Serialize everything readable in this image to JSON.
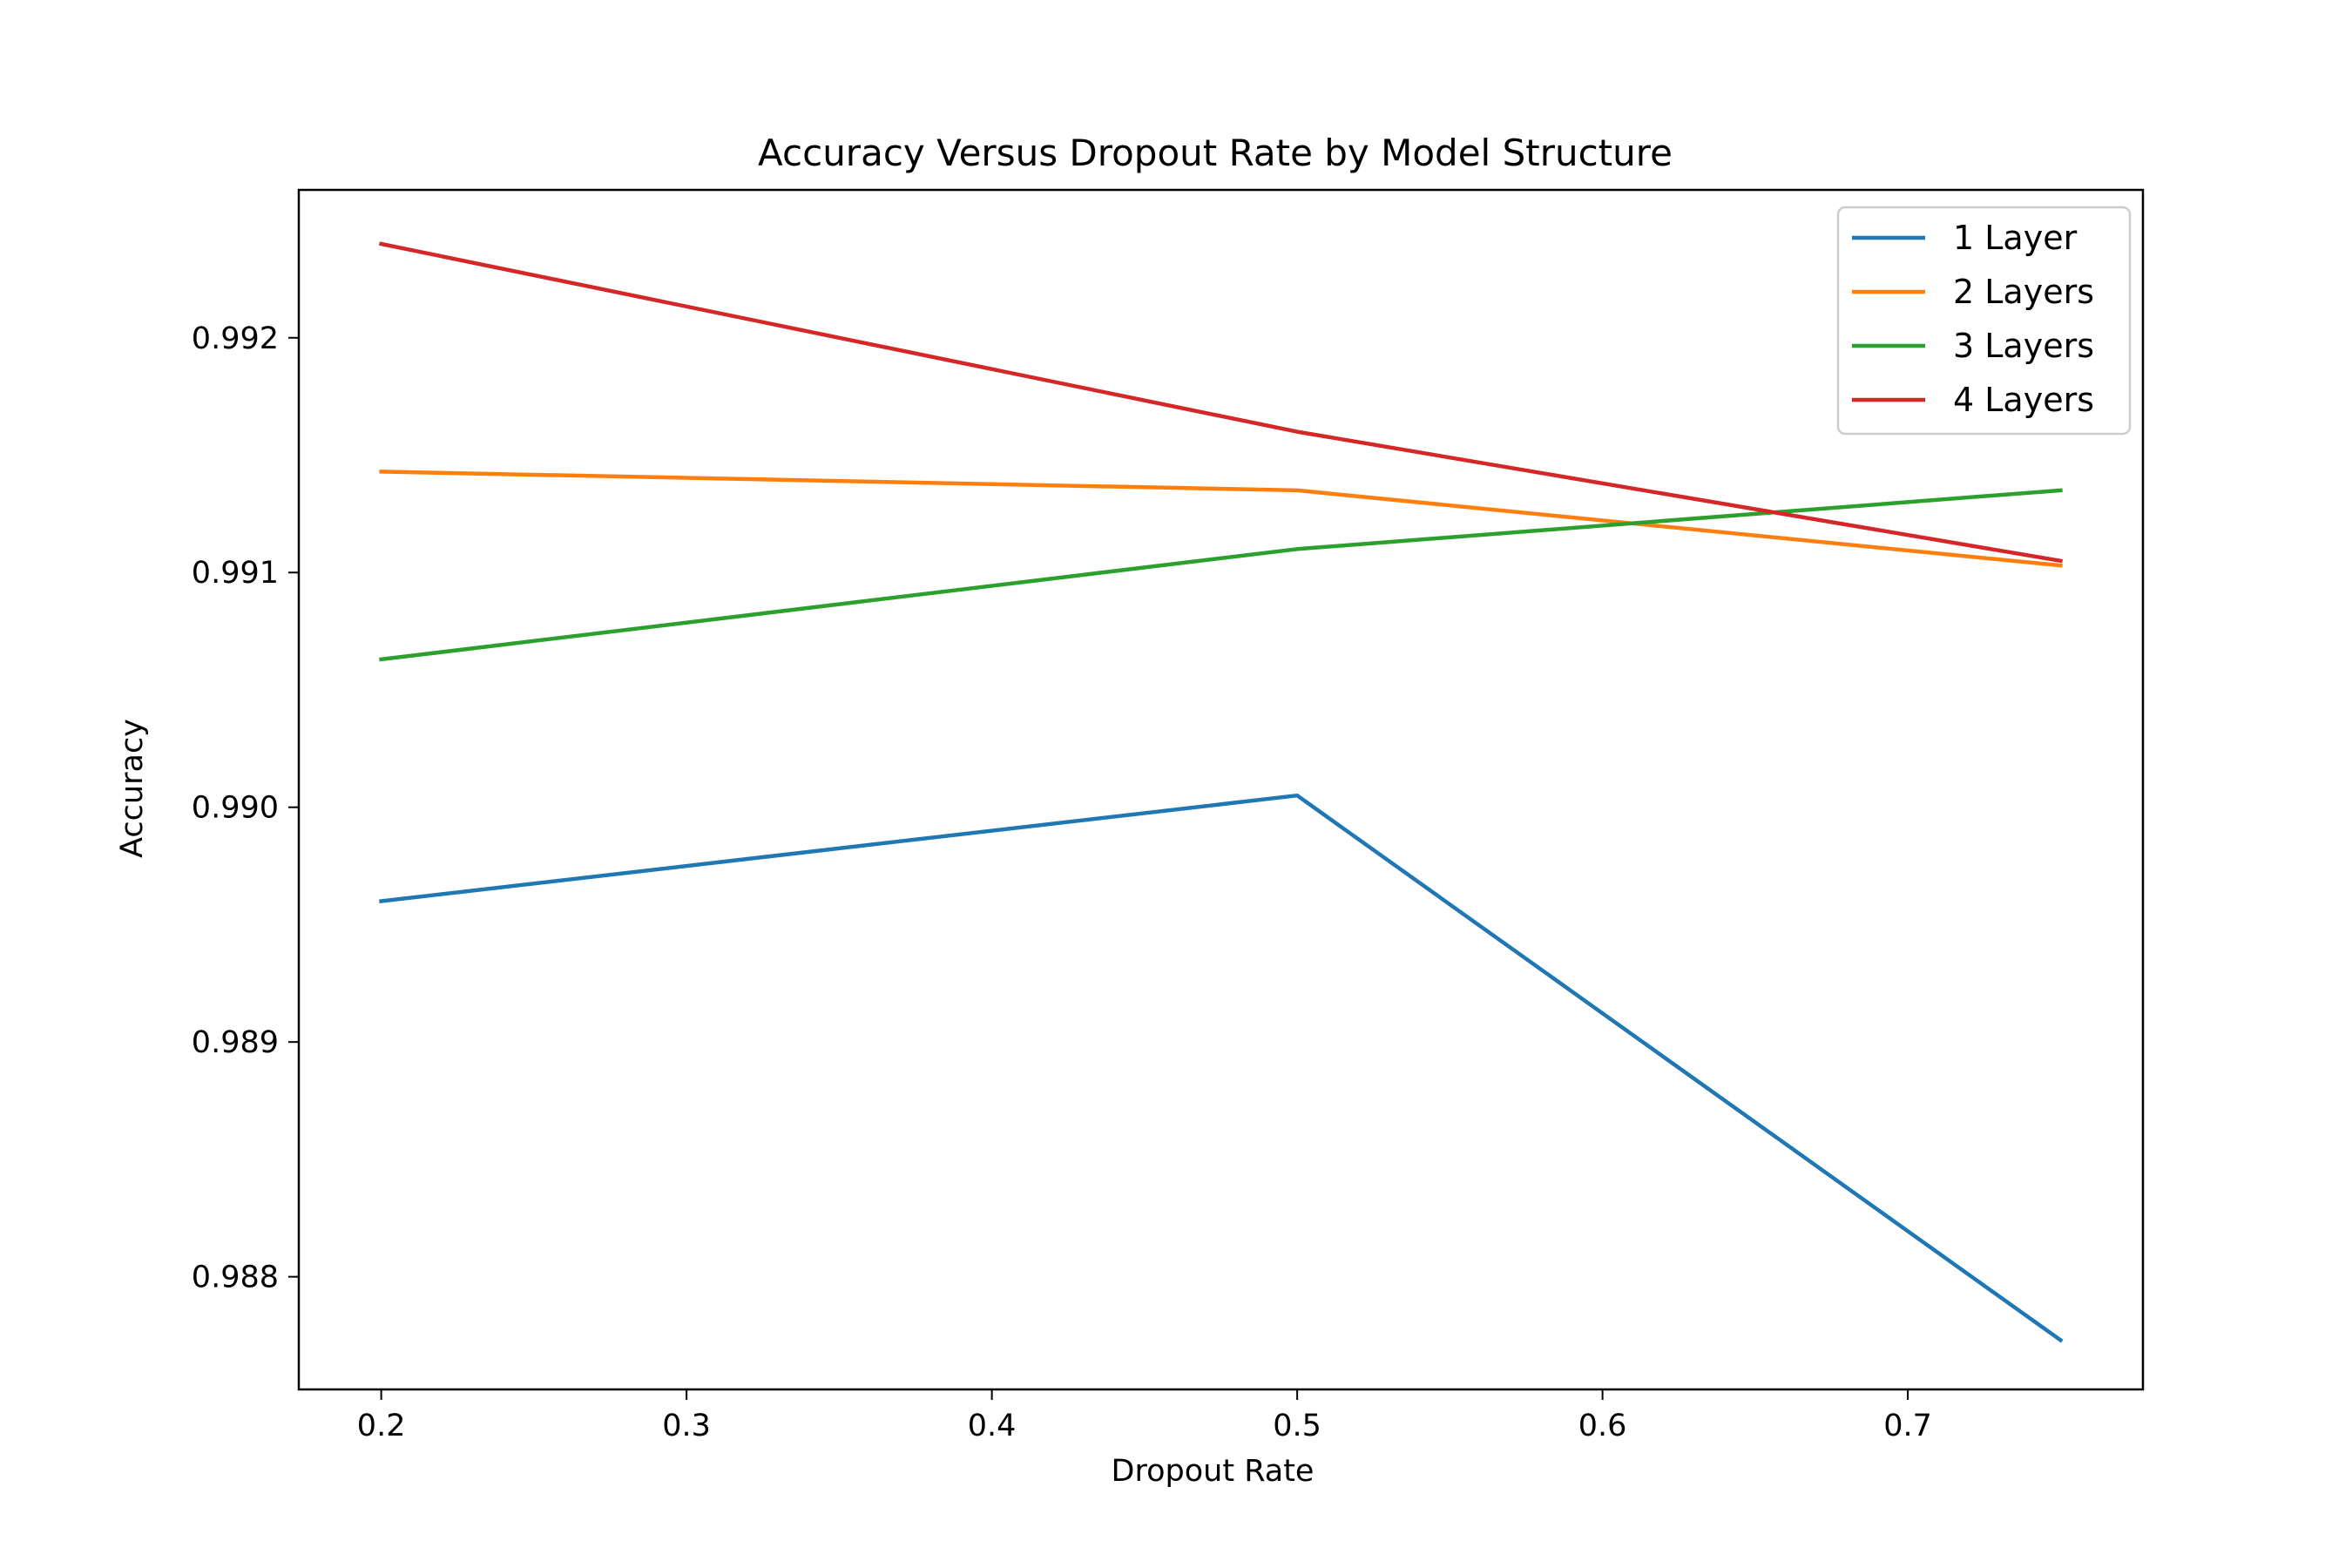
{
  "chart_data": {
    "type": "line",
    "title": "Accuracy Versus Dropout Rate by Model Structure",
    "xlabel": "Dropout Rate",
    "ylabel": "Accuracy",
    "x": [
      0.2,
      0.5,
      0.75
    ],
    "xlim": [
      0.173,
      0.777
    ],
    "ylim": [
      0.98752,
      0.99263
    ],
    "xticks": [
      0.2,
      0.3,
      0.4,
      0.5,
      0.6,
      0.7
    ],
    "xtick_labels": [
      "0.2",
      "0.3",
      "0.4",
      "0.5",
      "0.6",
      "0.7"
    ],
    "yticks": [
      0.988,
      0.989,
      0.99,
      0.991,
      0.992
    ],
    "ytick_labels": [
      "0.988",
      "0.989",
      "0.990",
      "0.991",
      "0.992"
    ],
    "grid": false,
    "legend_position": "upper right",
    "series": [
      {
        "name": "1 Layer",
        "color": "#1f77b4",
        "values": [
          0.9896,
          0.99005,
          0.98773
        ]
      },
      {
        "name": "2 Layers",
        "color": "#ff7f0e",
        "values": [
          0.99143,
          0.99135,
          0.99103
        ]
      },
      {
        "name": "3 Layers",
        "color": "#2ca02c",
        "values": [
          0.99063,
          0.9911,
          0.99135
        ]
      },
      {
        "name": "4 Layers",
        "color": "#d62728",
        "values": [
          0.9924,
          0.9916,
          0.99105
        ]
      }
    ]
  }
}
